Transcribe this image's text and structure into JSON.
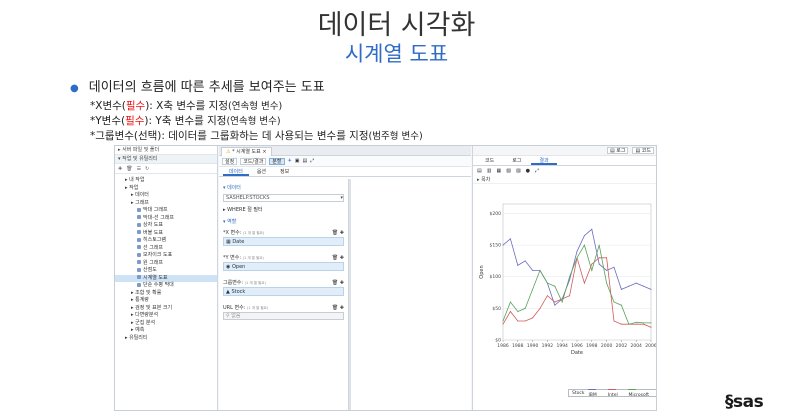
{
  "slide": {
    "title": "데이터 시각화",
    "subtitle": "시계열 도표",
    "bullet": "데이터의 흐름에 따른 추세를 보여주는 도표",
    "lines": [
      {
        "prefix": "*X변수(",
        "req": "필수",
        "suffix": "): X축 변수를 지정",
        "note": "(연속형 변수)"
      },
      {
        "prefix": "*Y변수(",
        "req": "필수",
        "suffix": "): Y축 변수를 지정",
        "note": "(연속형 변수)"
      },
      {
        "prefix": "*그룹변수(선택): 데이터를 그룹화하는 데 사용되는 변수를 지정",
        "req": "",
        "suffix": "",
        "note": "(범주형 변수)"
      }
    ]
  },
  "app": {
    "left_panel": {
      "header": "서버 파일 및 폴더",
      "section": "작업 및 유틸리티",
      "tree": [
        {
          "label": "내 작업",
          "indent": 1
        },
        {
          "label": "작업",
          "indent": 1
        },
        {
          "label": "데이터",
          "indent": 2
        },
        {
          "label": "그래프",
          "indent": 2
        },
        {
          "label": "막대 그래프",
          "indent": 3
        },
        {
          "label": "막대-선 그래프",
          "indent": 3
        },
        {
          "label": "상자 도표",
          "indent": 3
        },
        {
          "label": "버블 도표",
          "indent": 3
        },
        {
          "label": "히스토그램",
          "indent": 3
        },
        {
          "label": "선 그래프",
          "indent": 3
        },
        {
          "label": "모자이크 도표",
          "indent": 3
        },
        {
          "label": "원 그래프",
          "indent": 3
        },
        {
          "label": "산점도",
          "indent": 3
        },
        {
          "label": "시계열 도표",
          "indent": 3,
          "selected": true
        },
        {
          "label": "단순 수평 막대",
          "indent": 3
        },
        {
          "label": "조합 및 확률",
          "indent": 2
        },
        {
          "label": "통계량",
          "indent": 2
        },
        {
          "label": "검정 및 표본 크기",
          "indent": 2
        },
        {
          "label": "다변량분석",
          "indent": 2
        },
        {
          "label": "군집 분석",
          "indent": 2
        },
        {
          "label": "예측",
          "indent": 2
        },
        {
          "label": "유틸리티",
          "indent": 1
        }
      ]
    },
    "tab_title": "* 시계열 도표",
    "toolbar": {
      "seg1": "설정",
      "seg2": "코드/결과",
      "seg3": "분할"
    },
    "options_tabs": [
      "데이터",
      "옵션",
      "정보"
    ],
    "options": {
      "data_section": "데이터",
      "dataset": "SASHELP.STOCKS",
      "where": "WHERE 절 필터",
      "roles": "역할",
      "x_label": "*X 변수:",
      "x_hint": "(1 개 열 필요)",
      "x_value": "Date",
      "y_label": "*Y 변수:",
      "y_hint": "(1 개 열 필요)",
      "y_value": "Open",
      "group_label": "그룹변수:",
      "group_hint": "(1 개 열 필요)",
      "group_value": "Stock",
      "url_label": "URL 변수:",
      "url_hint": "(1 개 열 필요)",
      "url_value": "없음"
    },
    "right_toolbar": {
      "log": "로그",
      "code": "코드"
    },
    "result_tabs": [
      "코드",
      "로그",
      "결과"
    ],
    "result_section": "목차"
  },
  "chart_data": {
    "type": "line",
    "xlabel": "Date",
    "ylabel": "Open",
    "x_ticks": [
      "1986",
      "1988",
      "1990",
      "1992",
      "1994",
      "1996",
      "1998",
      "2000",
      "2002",
      "2004",
      "2006"
    ],
    "y_ticks": [
      "$0",
      "$50",
      "$100",
      "$150",
      "$200"
    ],
    "xlim": [
      1986,
      2006
    ],
    "ylim": [
      0,
      215
    ],
    "legend_title": "Stock",
    "legend_position": "bottom",
    "grid": true,
    "series": [
      {
        "name": "IBM",
        "color": "#6b6bc4",
        "x": [
          1986,
          1987,
          1988,
          1989,
          1990,
          1991,
          1992,
          1993,
          1994,
          1995,
          1996,
          1997,
          1998,
          1999,
          2000,
          2001,
          2002,
          2003,
          2004,
          2005,
          2006
        ],
        "y": [
          150,
          160,
          118,
          125,
          110,
          110,
          90,
          55,
          65,
          95,
          140,
          165,
          175,
          120,
          110,
          115,
          80,
          85,
          90,
          85,
          80
        ]
      },
      {
        "name": "Intel",
        "color": "#d25a5a",
        "x": [
          1986,
          1987,
          1988,
          1989,
          1990,
          1991,
          1992,
          1993,
          1994,
          1995,
          1996,
          1997,
          1998,
          1999,
          2000,
          2001,
          2002,
          2003,
          2004,
          2005,
          2006
        ],
        "y": [
          25,
          45,
          30,
          30,
          35,
          50,
          70,
          60,
          65,
          70,
          130,
          90,
          120,
          130,
          130,
          30,
          25,
          25,
          25,
          25,
          20
        ]
      },
      {
        "name": "Microsoft",
        "color": "#5aa05a",
        "x": [
          1986,
          1987,
          1988,
          1989,
          1990,
          1991,
          1992,
          1993,
          1994,
          1995,
          1996,
          1997,
          1998,
          1999,
          2000,
          2001,
          2002,
          2003,
          2004,
          2005,
          2006
        ],
        "y": [
          30,
          60,
          45,
          50,
          80,
          110,
          90,
          85,
          60,
          100,
          130,
          150,
          110,
          150,
          90,
          60,
          55,
          25,
          28,
          27,
          27
        ]
      }
    ]
  },
  "brand": {
    "logo_text": "sas"
  }
}
